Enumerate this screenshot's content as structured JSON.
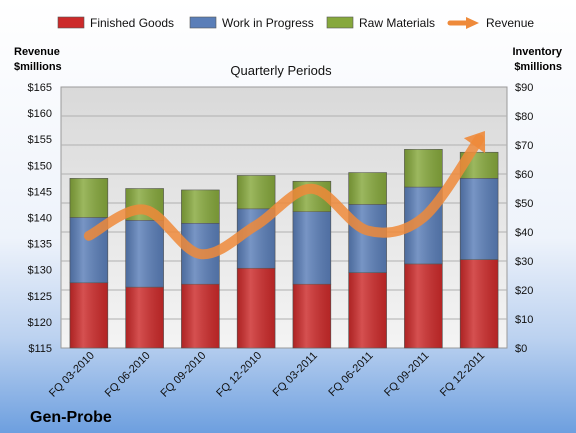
{
  "chart_data": {
    "type": "bar",
    "title": "Quarterly Periods",
    "company": "Gen-Probe",
    "categories": [
      "FQ 03-2010",
      "FQ 06-2010",
      "FQ 09-2010",
      "FQ 12-2010",
      "FQ 03-2011",
      "FQ 06-2011",
      "FQ 09-2011",
      "FQ 12-2011"
    ],
    "stacked": true,
    "axis": "right",
    "series": [
      {
        "name": "Finished Goods",
        "color": "#cc2a2a",
        "values": [
          22.5,
          21,
          22,
          27.5,
          22,
          26,
          29,
          30.5
        ]
      },
      {
        "name": "Work in Progress",
        "color": "#5a7eb8",
        "values": [
          22.5,
          23,
          21,
          20.5,
          25,
          23.5,
          26.5,
          28
        ]
      },
      {
        "name": "Raw Materials",
        "color": "#86a83c",
        "values": [
          13.5,
          11,
          11.5,
          11.5,
          10.5,
          11,
          13,
          9
        ]
      }
    ],
    "line_series": {
      "name": "Revenue",
      "axis": "left",
      "color": "#ee8a3a",
      "values": [
        136.5,
        141.5,
        133,
        138.5,
        145.5,
        137.5,
        140,
        155
      ]
    },
    "left_axis": {
      "label_line1": "Revenue",
      "label_line2": "$millions",
      "min": 115,
      "max": 165,
      "step": 5,
      "prefix": "$"
    },
    "right_axis": {
      "label_line1": "Inventory",
      "label_line2": "$millions",
      "min": 0,
      "max": 90,
      "step": 10,
      "prefix": "$"
    },
    "grid": true,
    "legend_position": "top"
  }
}
